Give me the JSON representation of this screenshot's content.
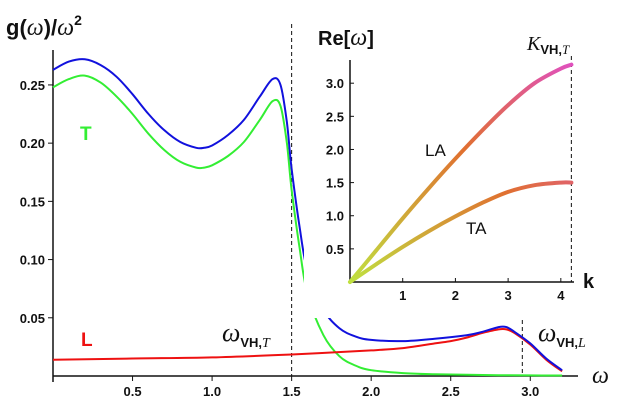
{
  "chart_data": [
    {
      "type": "line",
      "title": "",
      "ylabel_parts": {
        "a": "g(",
        "b": "ω",
        "c": ")/",
        "d": "ω",
        "e": "2"
      },
      "xlabel": "ω",
      "xlim": [
        0,
        3.3
      ],
      "ylim": [
        0,
        0.28
      ],
      "x_ticks": [
        "0.5",
        "1.0",
        "1.5",
        "2.0",
        "2.5",
        "3.0"
      ],
      "x_tick_values": [
        0.5,
        1.0,
        1.5,
        2.0,
        2.5,
        3.0
      ],
      "y_ticks": [
        "0.05",
        "0.10",
        "0.15",
        "0.20",
        "0.25"
      ],
      "y_tick_values": [
        0.05,
        0.1,
        0.15,
        0.2,
        0.25
      ],
      "colors": {
        "T": "#33ee33",
        "L": "#ee1111",
        "total": "#1111dd",
        "guide": "#111111"
      },
      "series": [
        {
          "name": "T",
          "label": "T",
          "color": "#33ee33",
          "x": [
            0,
            0.1,
            0.2,
            0.3,
            0.4,
            0.5,
            0.6,
            0.7,
            0.8,
            0.9,
            0.95,
            1.0,
            1.1,
            1.2,
            1.3,
            1.38,
            1.43,
            1.47,
            1.5,
            1.55,
            1.6,
            1.7,
            1.8,
            1.9,
            2.0,
            2.2,
            2.4,
            2.6,
            2.8,
            3.0,
            3.2
          ],
          "values": [
            0.248,
            0.255,
            0.258,
            0.252,
            0.24,
            0.225,
            0.208,
            0.194,
            0.184,
            0.179,
            0.179,
            0.181,
            0.189,
            0.201,
            0.22,
            0.236,
            0.232,
            0.2,
            0.16,
            0.11,
            0.07,
            0.035,
            0.017,
            0.009,
            0.005,
            0.0025,
            0.0015,
            0.001,
            0.0007,
            0.0005,
            0.0004
          ]
        },
        {
          "name": "L",
          "label": "L",
          "color": "#ee1111",
          "x": [
            0,
            0.5,
            1.0,
            1.5,
            2.0,
            2.2,
            2.4,
            2.5,
            2.6,
            2.7,
            2.8,
            2.85,
            2.9,
            3.0,
            3.1,
            3.2
          ],
          "values": [
            0.014,
            0.015,
            0.016,
            0.0185,
            0.022,
            0.024,
            0.028,
            0.03,
            0.033,
            0.037,
            0.04,
            0.04,
            0.037,
            0.027,
            0.014,
            0.004
          ]
        },
        {
          "name": "total",
          "label": "",
          "color": "#1111dd",
          "x": [
            0,
            0.1,
            0.2,
            0.3,
            0.4,
            0.5,
            0.6,
            0.7,
            0.8,
            0.9,
            0.95,
            1.0,
            1.1,
            1.2,
            1.3,
            1.38,
            1.43,
            1.47,
            1.5,
            1.55,
            1.6,
            1.7,
            1.8,
            1.9,
            2.0,
            2.2,
            2.4,
            2.6,
            2.7,
            2.8,
            2.85,
            2.9,
            3.0,
            3.1,
            3.2
          ],
          "values": [
            0.263,
            0.27,
            0.272,
            0.267,
            0.257,
            0.242,
            0.225,
            0.211,
            0.201,
            0.196,
            0.196,
            0.198,
            0.207,
            0.22,
            0.24,
            0.255,
            0.25,
            0.218,
            0.178,
            0.128,
            0.09,
            0.057,
            0.041,
            0.034,
            0.031,
            0.03,
            0.032,
            0.035,
            0.038,
            0.042,
            0.042,
            0.038,
            0.028,
            0.015,
            0.005
          ]
        }
      ],
      "annotations": {
        "vh_T": {
          "main": "ω",
          "sub": "VH,",
          "italic_sub": "T",
          "x": 1.5
        },
        "vh_L": {
          "main": "ω",
          "sub": "VH,",
          "italic_sub": "L",
          "x": 2.95
        }
      }
    },
    {
      "type": "line",
      "title": "",
      "ylabel": "Re[ω]",
      "ylabel_parts": {
        "a": "Re[",
        "b": "ω",
        "c": "]"
      },
      "xlabel": "k",
      "xlim": [
        0,
        4.25
      ],
      "ylim": [
        0,
        3.35
      ],
      "x_ticks": [
        "1",
        "2",
        "3",
        "4"
      ],
      "x_tick_values": [
        1,
        2,
        3,
        4
      ],
      "y_ticks": [
        "0.5",
        "1.0",
        "1.5",
        "2.0",
        "2.5",
        "3.0"
      ],
      "y_tick_values": [
        0.5,
        1.0,
        1.5,
        2.0,
        2.5,
        3.0
      ],
      "series": [
        {
          "name": "LA",
          "label": "LA",
          "x": [
            0,
            0.5,
            1.0,
            1.5,
            2.0,
            2.5,
            3.0,
            3.5,
            4.0,
            4.2
          ],
          "values": [
            0,
            0.48,
            0.96,
            1.42,
            1.86,
            2.28,
            2.67,
            3.0,
            3.22,
            3.28
          ]
        },
        {
          "name": "TA",
          "label": "TA",
          "x": [
            0,
            0.5,
            1.0,
            1.5,
            2.0,
            2.5,
            3.0,
            3.5,
            4.0,
            4.2
          ],
          "values": [
            0,
            0.27,
            0.53,
            0.77,
            0.99,
            1.19,
            1.36,
            1.46,
            1.5,
            1.5
          ]
        }
      ],
      "gradient": {
        "start": "#c0e040",
        "mid": "#e07030",
        "end": "#e050c0"
      },
      "annotations": {
        "k_vh": {
          "main": "K",
          "sub": "VH,",
          "italic_sub": "T",
          "x": 4.2
        }
      }
    }
  ]
}
